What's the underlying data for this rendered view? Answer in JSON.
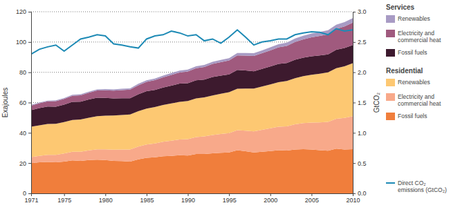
{
  "chart_data": {
    "type": "area",
    "stacked": true,
    "grid": true,
    "y_label": "Exajoules",
    "y2_label": "GtCO₂",
    "x": [
      1971,
      1972,
      1973,
      1974,
      1975,
      1976,
      1977,
      1978,
      1979,
      1980,
      1981,
      1982,
      1983,
      1984,
      1985,
      1986,
      1987,
      1988,
      1989,
      1990,
      1991,
      1992,
      1993,
      1994,
      1995,
      1996,
      1997,
      1998,
      1999,
      2000,
      2001,
      2002,
      2003,
      2004,
      2005,
      2006,
      2007,
      2008,
      2009,
      2010
    ],
    "xlim": [
      1971,
      2010
    ],
    "xticks": [
      1971,
      1975,
      1980,
      1985,
      1990,
      1995,
      2000,
      2005,
      2010
    ],
    "ylim": [
      0,
      120
    ],
    "yticks": [
      0,
      20,
      40,
      60,
      80,
      100,
      120
    ],
    "y2lim": [
      0,
      3
    ],
    "y2ticks": [
      {
        "value": 0,
        "label": "0.0"
      },
      0.5,
      {
        "value": 1,
        "label": "1.0"
      },
      1.5,
      {
        "value": 2,
        "label": "2.0"
      },
      2.5,
      {
        "value": 3,
        "label": "3.0"
      }
    ],
    "series": [
      {
        "name": "Fossil fuels",
        "group": "Residential",
        "type": "area",
        "color": "#f07e3c",
        "values": [
          20.0,
          20.5,
          20.8,
          20.5,
          21.0,
          21.8,
          21.5,
          22.0,
          22.3,
          22.0,
          21.5,
          21.3,
          21.0,
          22.5,
          23.5,
          23.8,
          24.5,
          24.8,
          25.2,
          25.0,
          26.0,
          26.0,
          26.5,
          26.8,
          27.0,
          28.5,
          27.8,
          27.0,
          27.5,
          28.0,
          28.5,
          28.3,
          29.0,
          29.2,
          29.0,
          28.5,
          28.2,
          29.5,
          29.0,
          29.2
        ]
      },
      {
        "name": "Electricity and commercial heat",
        "group": "Residential",
        "type": "area",
        "color": "#f8a98a",
        "values": [
          4.0,
          4.3,
          4.6,
          4.9,
          5.3,
          5.7,
          6.0,
          6.4,
          6.8,
          7.1,
          7.4,
          7.7,
          8.0,
          8.4,
          8.8,
          9.2,
          9.6,
          10.0,
          10.4,
          10.8,
          11.2,
          11.6,
          12.0,
          12.4,
          12.8,
          13.2,
          13.6,
          14.0,
          14.5,
          15.0,
          15.5,
          16.0,
          16.6,
          17.2,
          17.8,
          18.4,
          19.0,
          19.8,
          20.8,
          21.8
        ]
      },
      {
        "name": "Renewables",
        "group": "Residential",
        "type": "area",
        "color": "#fdc872",
        "values": [
          20.0,
          20.2,
          20.4,
          20.6,
          20.8,
          21.0,
          21.3,
          21.6,
          21.9,
          22.2,
          22.5,
          22.8,
          23.1,
          23.4,
          23.7,
          24.0,
          24.3,
          24.6,
          24.9,
          25.2,
          25.5,
          25.8,
          26.2,
          26.6,
          27.0,
          27.4,
          27.8,
          28.2,
          28.6,
          29.0,
          29.5,
          30.0,
          30.5,
          31.0,
          31.6,
          32.2,
          32.8,
          33.4,
          34.2,
          35.0
        ]
      },
      {
        "name": "Fossil fuels",
        "group": "Services",
        "type": "area",
        "color": "#3d1a2e",
        "values": [
          11.0,
          11.3,
          11.6,
          11.3,
          11.5,
          12.0,
          11.8,
          12.0,
          12.2,
          11.8,
          11.3,
          11.0,
          10.8,
          11.2,
          11.5,
          11.3,
          11.5,
          11.8,
          12.0,
          11.8,
          12.0,
          11.8,
          12.2,
          12.0,
          11.8,
          12.5,
          12.0,
          11.5,
          11.6,
          11.8,
          12.0,
          11.8,
          12.2,
          12.3,
          12.2,
          12.0,
          11.8,
          12.2,
          12.0,
          12.0
        ]
      },
      {
        "name": "Electricity and commercial heat",
        "group": "Services",
        "type": "area",
        "color": "#a05a7e",
        "values": [
          3.0,
          3.2,
          3.4,
          3.6,
          3.8,
          4.0,
          4.2,
          4.5,
          4.8,
          5.0,
          5.2,
          5.4,
          5.6,
          5.9,
          6.2,
          6.5,
          6.8,
          7.1,
          7.4,
          7.7,
          8.0,
          8.3,
          8.6,
          8.9,
          9.2,
          9.5,
          9.8,
          10.1,
          10.4,
          10.7,
          11.0,
          11.3,
          11.7,
          12.1,
          12.5,
          12.9,
          13.3,
          13.8,
          14.3,
          14.8
        ]
      },
      {
        "name": "Renewables",
        "group": "Services",
        "type": "area",
        "color": "#a89bc4",
        "values": [
          0.5,
          0.5,
          0.5,
          0.6,
          0.6,
          0.6,
          0.7,
          0.7,
          0.7,
          0.8,
          0.8,
          0.9,
          0.9,
          1.0,
          1.0,
          1.1,
          1.1,
          1.2,
          1.2,
          1.3,
          1.3,
          1.4,
          1.4,
          1.5,
          1.5,
          1.6,
          1.7,
          1.8,
          1.9,
          2.0,
          2.1,
          2.2,
          2.3,
          2.4,
          2.5,
          2.6,
          2.7,
          2.8,
          2.9,
          3.0
        ]
      },
      {
        "name": "Direct CO₂ emissions (GtCO₂)",
        "type": "line",
        "axis": "y2",
        "color": "#1d8ab5",
        "values": [
          2.3,
          2.38,
          2.42,
          2.45,
          2.35,
          2.45,
          2.55,
          2.58,
          2.62,
          2.6,
          2.47,
          2.45,
          2.42,
          2.4,
          2.55,
          2.6,
          2.62,
          2.68,
          2.65,
          2.6,
          2.62,
          2.52,
          2.55,
          2.48,
          2.58,
          2.7,
          2.58,
          2.45,
          2.5,
          2.52,
          2.55,
          2.55,
          2.62,
          2.65,
          2.67,
          2.66,
          2.62,
          2.72,
          2.68,
          2.7
        ]
      }
    ]
  }
}
